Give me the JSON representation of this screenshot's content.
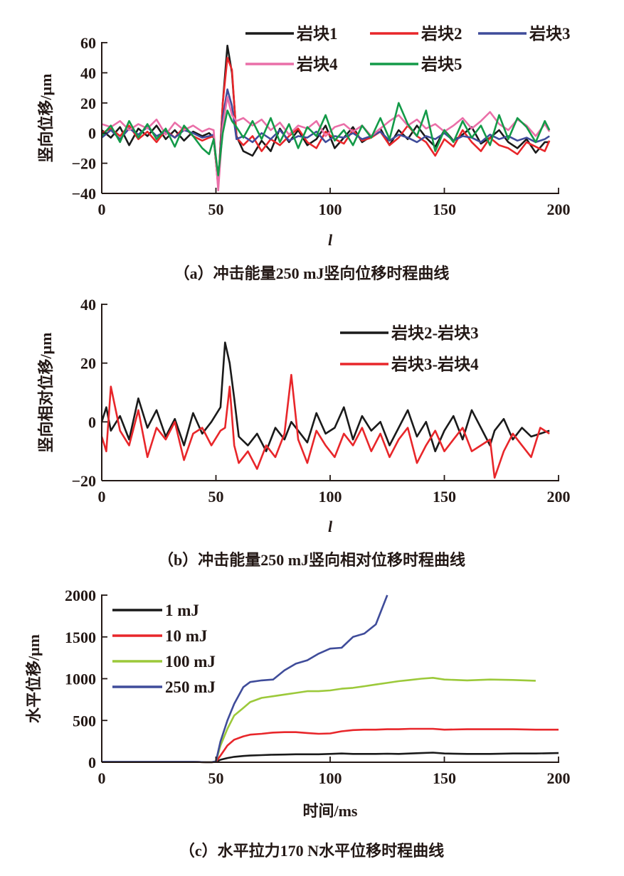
{
  "chart_data": [
    {
      "type": "line",
      "id": "a",
      "caption": "（a）冲击能量250 mJ竖向位移时程曲线",
      "xlabel": "l",
      "ylabel": "竖向位移/μm",
      "xlim": [
        0,
        200
      ],
      "ylim": [
        -40,
        60
      ],
      "xticks": [
        0,
        50,
        100,
        150,
        200
      ],
      "yticks": [
        -40,
        -20,
        0,
        20,
        40,
        60
      ],
      "legend": "top-right",
      "x": [
        0,
        4,
        8,
        12,
        16,
        20,
        24,
        28,
        32,
        36,
        40,
        44,
        47,
        49,
        51,
        53,
        55,
        57,
        59,
        62,
        66,
        70,
        74,
        78,
        82,
        86,
        90,
        94,
        98,
        102,
        106,
        110,
        114,
        118,
        122,
        126,
        130,
        134,
        138,
        142,
        146,
        150,
        154,
        158,
        162,
        166,
        170,
        174,
        178,
        182,
        186,
        190,
        194,
        196
      ],
      "series": [
        {
          "name": "岩块1",
          "color": "#1a1a1a",
          "values": [
            2,
            -3,
            4,
            -8,
            3,
            -2,
            5,
            -4,
            2,
            -5,
            1,
            -2,
            0,
            -3,
            -35,
            20,
            58,
            40,
            -2,
            -12,
            -15,
            -5,
            -12,
            3,
            -6,
            2,
            -8,
            -4,
            5,
            -10,
            -3,
            4,
            -6,
            -2,
            3,
            -8,
            2,
            -4,
            5,
            -3,
            -9,
            2,
            -5,
            -1,
            4,
            -7,
            -3,
            2,
            -6,
            -10,
            -4,
            -13,
            -6,
            -6
          ]
        },
        {
          "name": "岩块2",
          "color": "#e8262a",
          "values": [
            0,
            3,
            -2,
            5,
            -4,
            1,
            -6,
            2,
            -3,
            4,
            -2,
            -5,
            -3,
            -2,
            -36,
            20,
            50,
            42,
            -3,
            -8,
            -2,
            -12,
            -4,
            -8,
            -2,
            3,
            -6,
            -10,
            1,
            -4,
            -7,
            2,
            -5,
            -3,
            1,
            -8,
            -3,
            5,
            -2,
            -6,
            -15,
            -4,
            -9,
            2,
            -6,
            -12,
            -3,
            -8,
            -10,
            -14,
            -6,
            -9,
            -12,
            -5
          ]
        },
        {
          "name": "岩块3",
          "color": "#3f4c9a",
          "values": [
            -3,
            2,
            -4,
            3,
            -1,
            4,
            -2,
            1,
            -3,
            2,
            0,
            -3,
            -2,
            -1,
            -34,
            10,
            29,
            18,
            -4,
            -2,
            -6,
            0,
            -4,
            2,
            -5,
            -2,
            -3,
            1,
            -6,
            -2,
            -3,
            0,
            -4,
            -2,
            1,
            -5,
            -1,
            -3,
            -6,
            -2,
            -4,
            0,
            -5,
            -2,
            -3,
            -6,
            -1,
            -4,
            -2,
            -5,
            -3,
            -6,
            -4,
            -2
          ]
        },
        {
          "name": "岩块4",
          "color": "#ea6fa8",
          "values": [
            6,
            4,
            8,
            2,
            6,
            3,
            9,
            -1,
            7,
            2,
            5,
            1,
            3,
            2,
            -38,
            5,
            24,
            12,
            8,
            10,
            5,
            9,
            2,
            7,
            -1,
            5,
            3,
            8,
            -2,
            4,
            6,
            1,
            5,
            -2,
            3,
            8,
            12,
            5,
            9,
            3,
            6,
            1,
            5,
            10,
            3,
            8,
            14,
            6,
            2,
            9,
            5,
            -2,
            6,
            1
          ]
        },
        {
          "name": "岩块5",
          "color": "#139a48",
          "values": [
            -2,
            5,
            -6,
            8,
            -3,
            6,
            -4,
            3,
            -9,
            5,
            -2,
            -10,
            -14,
            -4,
            -28,
            0,
            15,
            8,
            4,
            -3,
            8,
            -4,
            10,
            -6,
            6,
            -10,
            4,
            -2,
            12,
            -5,
            2,
            -8,
            5,
            -3,
            10,
            -4,
            20,
            6,
            -2,
            15,
            -12,
            2,
            -6,
            8,
            -3,
            5,
            -8,
            12,
            -4,
            10,
            4,
            -6,
            8,
            2
          ]
        }
      ]
    },
    {
      "type": "line",
      "id": "b",
      "caption": "（b）冲击能量250 mJ竖向相对位移时程曲线",
      "xlabel": "l",
      "ylabel": "竖向相对位移/μm",
      "xlim": [
        0,
        200
      ],
      "ylim": [
        -20,
        40
      ],
      "xticks": [
        0,
        50,
        100,
        150,
        200
      ],
      "yticks": [
        -20,
        0,
        20,
        40
      ],
      "legend": "top-right",
      "x": [
        0,
        2,
        4,
        8,
        12,
        16,
        20,
        24,
        28,
        32,
        36,
        40,
        44,
        48,
        52,
        54,
        56,
        58,
        60,
        64,
        68,
        72,
        76,
        80,
        83,
        86,
        90,
        94,
        98,
        102,
        106,
        110,
        114,
        118,
        122,
        126,
        130,
        134,
        138,
        142,
        146,
        150,
        154,
        158,
        162,
        166,
        170,
        172,
        176,
        180,
        184,
        188,
        192,
        196
      ],
      "series": [
        {
          "name": "岩块2-岩块3",
          "color": "#1a1a1a",
          "values": [
            0,
            5,
            -3,
            2,
            -6,
            8,
            -2,
            4,
            -5,
            1,
            -8,
            3,
            -4,
            0,
            5,
            27,
            20,
            8,
            -5,
            -8,
            -4,
            -10,
            -2,
            -6,
            0,
            -3,
            -7,
            3,
            -4,
            -2,
            5,
            -6,
            2,
            -3,
            0,
            -8,
            -2,
            4,
            -5,
            0,
            -10,
            -3,
            2,
            -6,
            4,
            -2,
            -8,
            -3,
            1,
            -6,
            -2,
            -5,
            -4,
            -3
          ]
        },
        {
          "name": "岩块3-岩块4",
          "color": "#e8262a",
          "values": [
            -5,
            -10,
            12,
            -3,
            -8,
            4,
            -12,
            -2,
            -6,
            0,
            -13,
            -4,
            -2,
            -8,
            -3,
            -2,
            12,
            -8,
            -14,
            -10,
            -16,
            -8,
            -12,
            -4,
            16,
            -6,
            -14,
            -3,
            -8,
            -12,
            -4,
            -8,
            -2,
            -10,
            -4,
            -12,
            -6,
            -2,
            -14,
            -8,
            -3,
            -10,
            -6,
            -2,
            -10,
            -8,
            -6,
            -19,
            -10,
            -4,
            -8,
            -12,
            -2,
            -4
          ]
        }
      ]
    },
    {
      "type": "line",
      "id": "c",
      "caption": "（c）水平拉力170 N水平位移时程曲线",
      "xlabel": "时间/ms",
      "ylabel": "水平位移/μm",
      "xlim": [
        0,
        200
      ],
      "ylim": [
        0,
        2000
      ],
      "xticks": [
        0,
        50,
        100,
        150,
        200
      ],
      "yticks": [
        0,
        500,
        1000,
        1500,
        2000
      ],
      "legend": "top-left",
      "x": [
        0,
        10,
        20,
        30,
        40,
        46,
        48,
        50,
        52,
        55,
        58,
        62,
        65,
        70,
        75,
        80,
        85,
        90,
        95,
        100,
        105,
        110,
        115,
        120,
        125,
        130,
        135,
        140,
        145,
        150,
        160,
        170,
        180,
        190,
        200
      ],
      "series": [
        {
          "name": "1 mJ",
          "color": "#1a1a1a",
          "values": [
            5,
            5,
            5,
            5,
            5,
            0,
            -5,
            5,
            30,
            50,
            65,
            75,
            80,
            85,
            90,
            92,
            95,
            95,
            95,
            100,
            105,
            100,
            100,
            100,
            102,
            100,
            105,
            110,
            115,
            105,
            100,
            100,
            105,
            105,
            110
          ]
        },
        {
          "name": "10 mJ",
          "color": "#e8262a",
          "values": [
            5,
            5,
            5,
            5,
            5,
            0,
            -5,
            5,
            80,
            200,
            270,
            310,
            330,
            340,
            355,
            360,
            360,
            350,
            340,
            345,
            370,
            385,
            390,
            390,
            395,
            395,
            400,
            400,
            400,
            390,
            395,
            395,
            395,
            390,
            390
          ]
        },
        {
          "name": "100 mJ",
          "color": "#9cc93a",
          "values": [
            5,
            5,
            5,
            5,
            5,
            0,
            -10,
            10,
            200,
            400,
            560,
            650,
            720,
            770,
            790,
            810,
            830,
            850,
            850,
            860,
            880,
            890,
            910,
            930,
            950,
            970,
            985,
            1000,
            1010,
            990,
            980,
            990,
            985,
            975,
            null
          ]
        },
        {
          "name": "250 mJ",
          "color": "#3f4c9a",
          "values": [
            5,
            5,
            5,
            5,
            5,
            0,
            -15,
            10,
            250,
            500,
            700,
            900,
            960,
            980,
            990,
            1100,
            1180,
            1220,
            1300,
            1360,
            1370,
            1500,
            1540,
            1650,
            2000,
            null,
            null,
            null,
            null,
            null,
            null,
            null,
            null,
            null,
            null
          ]
        }
      ]
    }
  ]
}
